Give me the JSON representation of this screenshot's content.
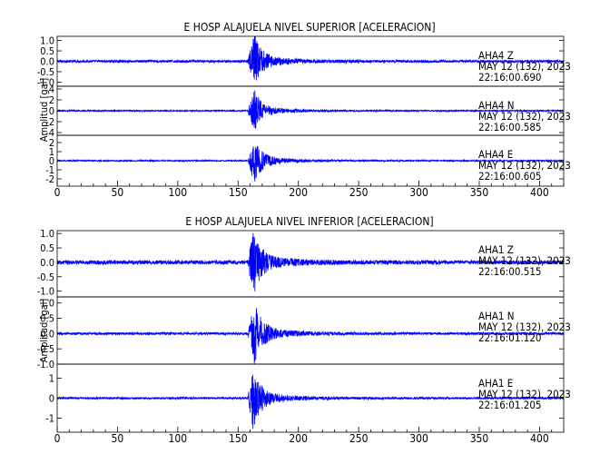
{
  "colors": {
    "trace": "#0000ff",
    "axes": "#000000",
    "background": "#ffffff"
  },
  "chart_data": {
    "type": "line",
    "x_ticks": [
      0,
      50,
      100,
      150,
      200,
      250,
      300,
      350,
      400
    ],
    "xlim": [
      0,
      420
    ],
    "grid": false,
    "groups": [
      {
        "title": "E HOSP ALAJUELA NIVEL SUPERIOR [ACELERACION]",
        "ylabel": "Amplitud [gal]",
        "panels": [
          {
            "station": "AHA4",
            "component": "Z",
            "date": "MAY 12 (132), 2023",
            "time": "22:16:00.690",
            "ylim": [
              -1.2,
              1.2
            ],
            "yticks": [
              "1.0",
              "0.5",
              "0.0",
              "-0.5",
              "-1.0"
            ],
            "ytick_values": [
              1.0,
              0.5,
              0.0,
              -0.5,
              -1.0
            ],
            "onset_s": 158,
            "peak_s": 163,
            "peak_amp": 1.2,
            "noise_amp": 0.06
          },
          {
            "station": "AHA4",
            "component": "N",
            "date": "MAY 12 (132), 2023",
            "time": "22:16:00.585",
            "ylim": [
              -4.5,
              4.5
            ],
            "yticks": [
              "4",
              "2",
              "0",
              "-2",
              "-4"
            ],
            "ytick_values": [
              4,
              2,
              0,
              -2,
              -4
            ],
            "onset_s": 158,
            "peak_s": 163,
            "peak_amp": 3.6,
            "noise_amp": 0.12
          },
          {
            "station": "AHA4",
            "component": "E",
            "date": "MAY 12 (132), 2023",
            "time": "22:16:00.605",
            "ylim": [
              -2.8,
              2.8
            ],
            "yticks": [
              "2",
              "1",
              "0",
              "-1",
              "-2"
            ],
            "ytick_values": [
              2,
              1,
              0,
              -1,
              -2
            ],
            "onset_s": 158,
            "peak_s": 163,
            "peak_amp": 2.3,
            "noise_amp": 0.07
          }
        ]
      },
      {
        "title": "E HOSP ALAJUELA NIVEL INFERIOR [ACELERACION]",
        "ylabel": "Amplitud [gal]",
        "panels": [
          {
            "station": "AHA1",
            "component": "Z",
            "date": "MAY 12 (132), 2023",
            "time": "22:16:00.515",
            "ylim": [
              -1.2,
              1.1
            ],
            "yticks": [
              "1.0",
              "0.5",
              "0.0",
              "-0.5",
              "-1.0"
            ],
            "ytick_values": [
              1.0,
              0.5,
              0.0,
              -0.5,
              -1.0
            ],
            "onset_s": 158,
            "peak_s": 162,
            "peak_amp": 1.1,
            "noise_amp": 0.07
          },
          {
            "station": "AHA1",
            "component": "N",
            "date": "MAY 12 (132), 2023",
            "time": "22:16:01.120",
            "ylim": [
              -1.0,
              1.2
            ],
            "yticks": [
              "1.0",
              "0.5",
              "0.0",
              "-0.5",
              "-1.0"
            ],
            "ytick_values": [
              1.0,
              0.5,
              0.0,
              -0.5,
              -1.0
            ],
            "onset_s": 158,
            "peak_s": 163,
            "peak_amp": 0.95,
            "noise_amp": 0.04
          },
          {
            "station": "AHA1",
            "component": "E",
            "date": "MAY 12 (132), 2023",
            "time": "22:16:01.205",
            "ylim": [
              -1.7,
              1.7
            ],
            "yticks": [
              "1",
              "0",
              "-1"
            ],
            "ytick_values": [
              1,
              0,
              -1
            ],
            "onset_s": 158,
            "peak_s": 162,
            "peak_amp": 1.4,
            "noise_amp": 0.05
          }
        ]
      }
    ]
  }
}
